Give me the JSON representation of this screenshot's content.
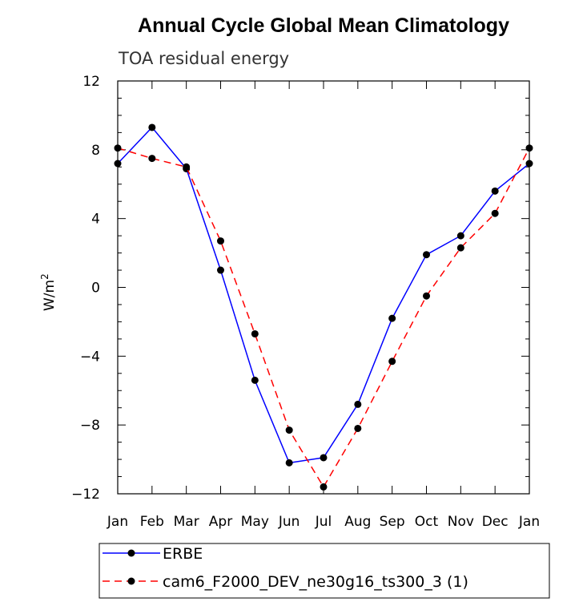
{
  "chart_data": {
    "type": "line",
    "title": "Annual Cycle Global Mean Climatology",
    "subtitle": "TOA residual energy",
    "ylabel": "W/m",
    "ylabel_superscript": "2",
    "ylim": [
      -12,
      12
    ],
    "yticks": [
      12,
      8,
      4,
      0,
      -4,
      -8,
      -12
    ],
    "yticklabels": [
      "12",
      "8",
      "4",
      "0",
      "−4",
      "−8",
      "−12"
    ],
    "categories": [
      "Jan",
      "Feb",
      "Mar",
      "Apr",
      "May",
      "Jun",
      "Jul",
      "Aug",
      "Sep",
      "Oct",
      "Nov",
      "Dec",
      "Jan"
    ],
    "grid": false,
    "legend_position": "bottom",
    "series": [
      {
        "name": "ERBE",
        "color": "#0000ff",
        "dash": "solid",
        "values": [
          7.2,
          9.3,
          6.9,
          1.0,
          -5.4,
          -10.2,
          -9.9,
          -6.8,
          -1.8,
          1.9,
          3.0,
          5.6,
          7.2
        ]
      },
      {
        "name": "cam6_F2000_DEV_ne30g16_ts300_3 (1)",
        "color": "#ff0000",
        "dash": "dashed",
        "values": [
          8.1,
          7.5,
          7.0,
          2.7,
          -2.7,
          -8.3,
          -11.6,
          -8.2,
          -4.3,
          -0.5,
          2.3,
          4.3,
          8.1
        ]
      }
    ]
  }
}
